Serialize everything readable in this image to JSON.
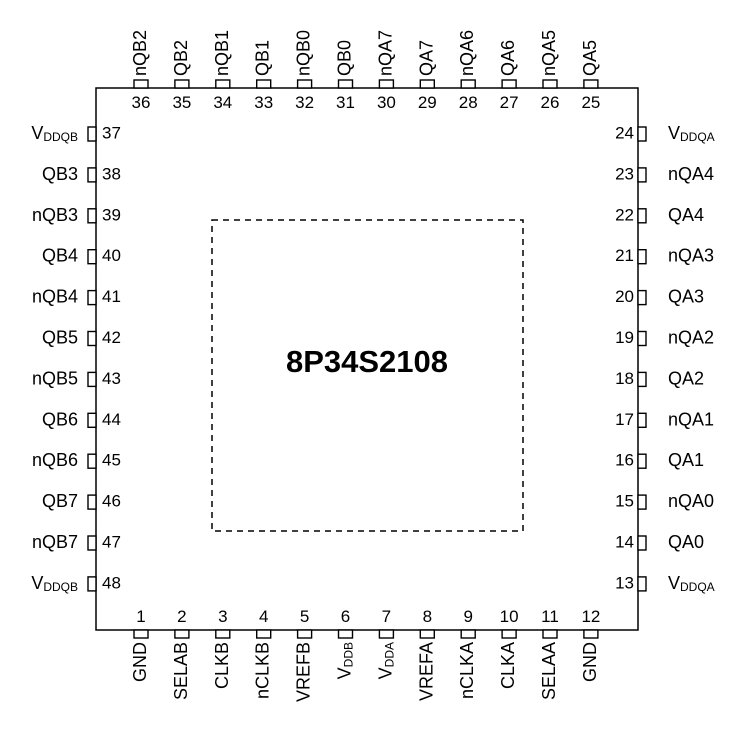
{
  "part_number": "8P34S2108",
  "pins": {
    "bottom": [
      {
        "num": "1",
        "name": "GND"
      },
      {
        "num": "2",
        "name": "SELAB"
      },
      {
        "num": "3",
        "name": "CLKB"
      },
      {
        "num": "4",
        "name": "nCLKB"
      },
      {
        "num": "5",
        "name": "VREFB"
      },
      {
        "num": "6",
        "name": "V",
        "sub": "DDB"
      },
      {
        "num": "7",
        "name": "V",
        "sub": "DDA"
      },
      {
        "num": "8",
        "name": "VREFA"
      },
      {
        "num": "9",
        "name": "nCLKA"
      },
      {
        "num": "10",
        "name": "CLKA"
      },
      {
        "num": "11",
        "name": "SELAA"
      },
      {
        "num": "12",
        "name": "GND"
      }
    ],
    "right": [
      {
        "num": "13",
        "name": "V",
        "sub": "DDQA"
      },
      {
        "num": "14",
        "name": "QA0"
      },
      {
        "num": "15",
        "name": "nQA0"
      },
      {
        "num": "16",
        "name": "QA1"
      },
      {
        "num": "17",
        "name": "nQA1"
      },
      {
        "num": "18",
        "name": "QA2"
      },
      {
        "num": "19",
        "name": "nQA2"
      },
      {
        "num": "20",
        "name": "QA3"
      },
      {
        "num": "21",
        "name": "nQA3"
      },
      {
        "num": "22",
        "name": "QA4"
      },
      {
        "num": "23",
        "name": "nQA4"
      },
      {
        "num": "24",
        "name": "V",
        "sub": "DDQA"
      }
    ],
    "top": [
      {
        "num": "25",
        "name": "QA5"
      },
      {
        "num": "26",
        "name": "nQA5"
      },
      {
        "num": "27",
        "name": "QA6"
      },
      {
        "num": "28",
        "name": "nQA6"
      },
      {
        "num": "29",
        "name": "QA7"
      },
      {
        "num": "30",
        "name": "nQA7"
      },
      {
        "num": "31",
        "name": "QB0"
      },
      {
        "num": "32",
        "name": "nQB0"
      },
      {
        "num": "33",
        "name": "QB1"
      },
      {
        "num": "34",
        "name": "nQB1"
      },
      {
        "num": "35",
        "name": "QB2"
      },
      {
        "num": "36",
        "name": "nQB2"
      }
    ],
    "left": [
      {
        "num": "37",
        "name": "V",
        "sub": "DDQB"
      },
      {
        "num": "38",
        "name": "QB3"
      },
      {
        "num": "39",
        "name": "nQB3"
      },
      {
        "num": "40",
        "name": "QB4"
      },
      {
        "num": "41",
        "name": "nQB4"
      },
      {
        "num": "42",
        "name": "QB5"
      },
      {
        "num": "43",
        "name": "nQB5"
      },
      {
        "num": "44",
        "name": "QB6"
      },
      {
        "num": "45",
        "name": "nQB6"
      },
      {
        "num": "46",
        "name": "QB7"
      },
      {
        "num": "47",
        "name": "nQB7"
      },
      {
        "num": "48",
        "name": "V",
        "sub": "DDQB"
      }
    ]
  }
}
